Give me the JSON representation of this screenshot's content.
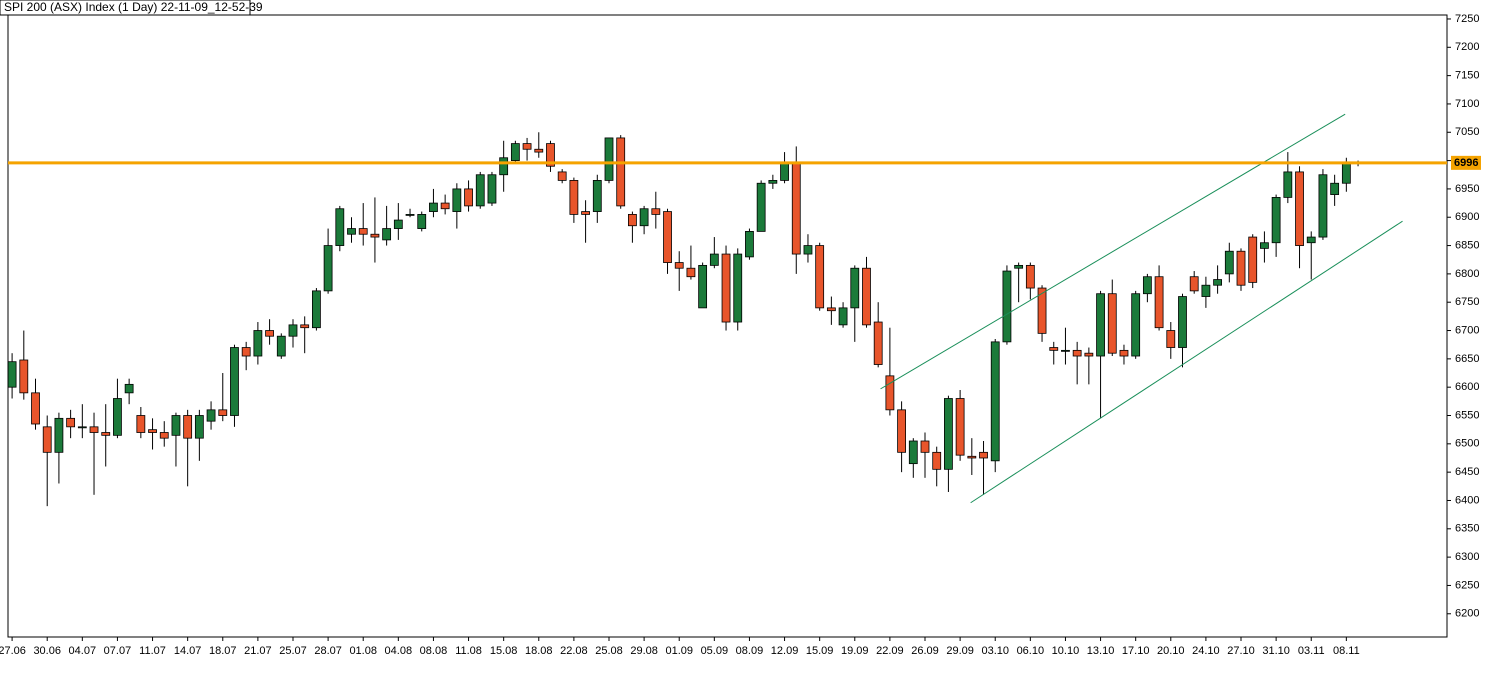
{
  "chart_data": {
    "type": "candlestick",
    "title": "SPI 200 (ASX) Index (1 Day) 22-11-09_12-52-39",
    "categories": [
      "27.06",
      null,
      null,
      "30.06",
      null,
      null,
      "04.07",
      null,
      null,
      "07.07",
      null,
      null,
      "11.07",
      null,
      null,
      "14.07",
      null,
      null,
      "18.07",
      null,
      null,
      "21.07",
      null,
      null,
      "25.07",
      null,
      null,
      "28.07",
      null,
      null,
      "01.08",
      null,
      null,
      "04.08",
      null,
      null,
      "08.08",
      null,
      null,
      "11.08",
      null,
      null,
      "15.08",
      null,
      null,
      "18.08",
      null,
      null,
      "22.08",
      null,
      null,
      "25.08",
      null,
      null,
      "29.08",
      null,
      null,
      "01.09",
      null,
      null,
      "05.09",
      null,
      null,
      "08.09",
      null,
      null,
      "12.09",
      null,
      null,
      "15.09",
      null,
      null,
      "19.09",
      null,
      null,
      "22.09",
      null,
      null,
      "26.09",
      null,
      null,
      "29.09",
      null,
      null,
      "03.10",
      null,
      null,
      "06.10",
      null,
      null,
      "10.10",
      null,
      null,
      "13.10",
      null,
      null,
      "17.10",
      null,
      null,
      "20.10",
      null,
      null,
      "24.10",
      null,
      null,
      "27.10",
      null,
      null,
      "31.10",
      null,
      null,
      "03.11",
      null,
      null,
      "08.11",
      null
    ],
    "open": [
      6600,
      6648,
      6590,
      6530,
      6485,
      6545,
      6530,
      6530,
      6520,
      6515,
      6590,
      6550,
      6525,
      6520,
      6515,
      6550,
      6510,
      6540,
      6560,
      6550,
      6670,
      6655,
      6700,
      6655,
      6690,
      6710,
      6705,
      6770,
      6850,
      6870,
      6880,
      6870,
      6860,
      6880,
      6905,
      6880,
      6910,
      6925,
      6910,
      6950,
      6920,
      6925,
      6975,
      7000,
      7030,
      7020,
      7030,
      6980,
      6965,
      6910,
      6910,
      6965,
      7040,
      6905,
      6885,
      6915,
      6910,
      6820,
      6810,
      6740,
      6815,
      6835,
      6715,
      6830,
      6875,
      6960,
      6965,
      6995,
      6835,
      6850,
      6740,
      6710,
      6740,
      6810,
      6715,
      6620,
      6560,
      6465,
      6505,
      6485,
      6455,
      6580,
      6478,
      6485,
      6470,
      6680,
      6810,
      6815,
      6775,
      6670,
      6665,
      6665,
      6660,
      6655,
      6765,
      6665,
      6655,
      6765,
      6795,
      6700,
      6670,
      6795,
      6760,
      6780,
      6800,
      6840,
      6865,
      6845,
      6855,
      6935,
      6980,
      6855,
      6865,
      6940,
      6960,
      6995
    ],
    "high": [
      6660,
      6700,
      6615,
      6550,
      6555,
      6560,
      6570,
      6555,
      6570,
      6615,
      6615,
      6565,
      6545,
      6540,
      6555,
      6560,
      6560,
      6575,
      6625,
      6675,
      6680,
      6715,
      6720,
      6695,
      6720,
      6725,
      6775,
      6880,
      6920,
      6900,
      6925,
      6935,
      6920,
      6925,
      6915,
      6910,
      6950,
      6940,
      6960,
      6965,
      6980,
      6980,
      7035,
      7035,
      7040,
      7050,
      7035,
      6985,
      6970,
      6930,
      6975,
      7040,
      7045,
      6910,
      6920,
      6945,
      6915,
      6840,
      6850,
      6820,
      6865,
      6850,
      6845,
      6880,
      6965,
      6975,
      7015,
      7025,
      6870,
      6855,
      6760,
      6750,
      6815,
      6830,
      6750,
      6705,
      6575,
      6510,
      6520,
      6495,
      6585,
      6595,
      6510,
      6505,
      6685,
      6815,
      6820,
      6820,
      6780,
      6680,
      6705,
      6680,
      6670,
      6770,
      6790,
      6675,
      6770,
      6800,
      6815,
      6715,
      6765,
      6805,
      6795,
      6815,
      6855,
      6845,
      6870,
      6875,
      6940,
      7015,
      6990,
      6875,
      6985,
      6975,
      7005,
      7000
    ],
    "low": [
      6580,
      6578,
      6525,
      6390,
      6430,
      6510,
      6510,
      6410,
      6460,
      6510,
      6570,
      6510,
      6490,
      6495,
      6460,
      6425,
      6470,
      6525,
      6540,
      6530,
      6630,
      6640,
      6675,
      6650,
      6670,
      6660,
      6700,
      6765,
      6840,
      6855,
      6850,
      6820,
      6850,
      6860,
      6900,
      6875,
      6900,
      6905,
      6880,
      6910,
      6915,
      6920,
      6945,
      6995,
      7000,
      7005,
      6980,
      6960,
      6890,
      6855,
      6890,
      6960,
      6915,
      6855,
      6870,
      6880,
      6800,
      6770,
      6790,
      6740,
      6810,
      6700,
      6700,
      6825,
      6875,
      6950,
      6960,
      6800,
      6820,
      6735,
      6710,
      6705,
      6680,
      6705,
      6635,
      6550,
      6450,
      6440,
      6440,
      6425,
      6415,
      6470,
      6445,
      6410,
      6450,
      6675,
      6750,
      6755,
      6680,
      6640,
      6640,
      6605,
      6605,
      6545,
      6655,
      6640,
      6650,
      6750,
      6700,
      6650,
      6635,
      6765,
      6740,
      6765,
      6785,
      6770,
      6775,
      6820,
      6830,
      6925,
      6810,
      6790,
      6860,
      6920,
      6945,
      6990
    ],
    "close": [
      6645,
      6590,
      6535,
      6485,
      6545,
      6530,
      6530,
      6520,
      6515,
      6580,
      6605,
      6520,
      6520,
      6510,
      6550,
      6510,
      6550,
      6560,
      6550,
      6670,
      6655,
      6700,
      6690,
      6690,
      6710,
      6705,
      6770,
      6850,
      6915,
      6880,
      6870,
      6865,
      6880,
      6895,
      6905,
      6905,
      6925,
      6915,
      6950,
      6920,
      6975,
      6975,
      7005,
      7030,
      7020,
      7015,
      6990,
      6965,
      6905,
      6905,
      6965,
      7040,
      6920,
      6885,
      6915,
      6905,
      6820,
      6810,
      6795,
      6815,
      6835,
      6715,
      6835,
      6875,
      6960,
      6965,
      6995,
      6835,
      6850,
      6740,
      6735,
      6740,
      6810,
      6710,
      6640,
      6560,
      6485,
      6505,
      6485,
      6455,
      6580,
      6480,
      6475,
      6475,
      6680,
      6805,
      6815,
      6775,
      6695,
      6665,
      6665,
      6655,
      6655,
      6765,
      6660,
      6655,
      6765,
      6795,
      6705,
      6670,
      6760,
      6770,
      6780,
      6790,
      6840,
      6780,
      6785,
      6855,
      6935,
      6980,
      6850,
      6865,
      6975,
      6960,
      6995,
      6997
    ],
    "up_color": "#1b7a3a",
    "down_color": "#e8552b",
    "xlim": [
      -0.35,
      122.6
    ],
    "ylim": [
      6159,
      7257
    ],
    "yticks": [
      6200,
      6250,
      6300,
      6350,
      6400,
      6450,
      6500,
      6550,
      6600,
      6650,
      6700,
      6750,
      6800,
      6850,
      6900,
      6950,
      7000,
      7050,
      7100,
      7150,
      7200,
      7250
    ],
    "hline": {
      "value": 6996,
      "color": "#f5a300"
    },
    "trend_lines": [
      {
        "x": [
          74.2,
          113.9
        ],
        "y": [
          6597,
          7082
        ],
        "color": "#1a8f5a"
      },
      {
        "x": [
          81.9,
          118.8
        ],
        "y": [
          6396,
          6893
        ],
        "color": "#1a8f5a"
      }
    ]
  }
}
